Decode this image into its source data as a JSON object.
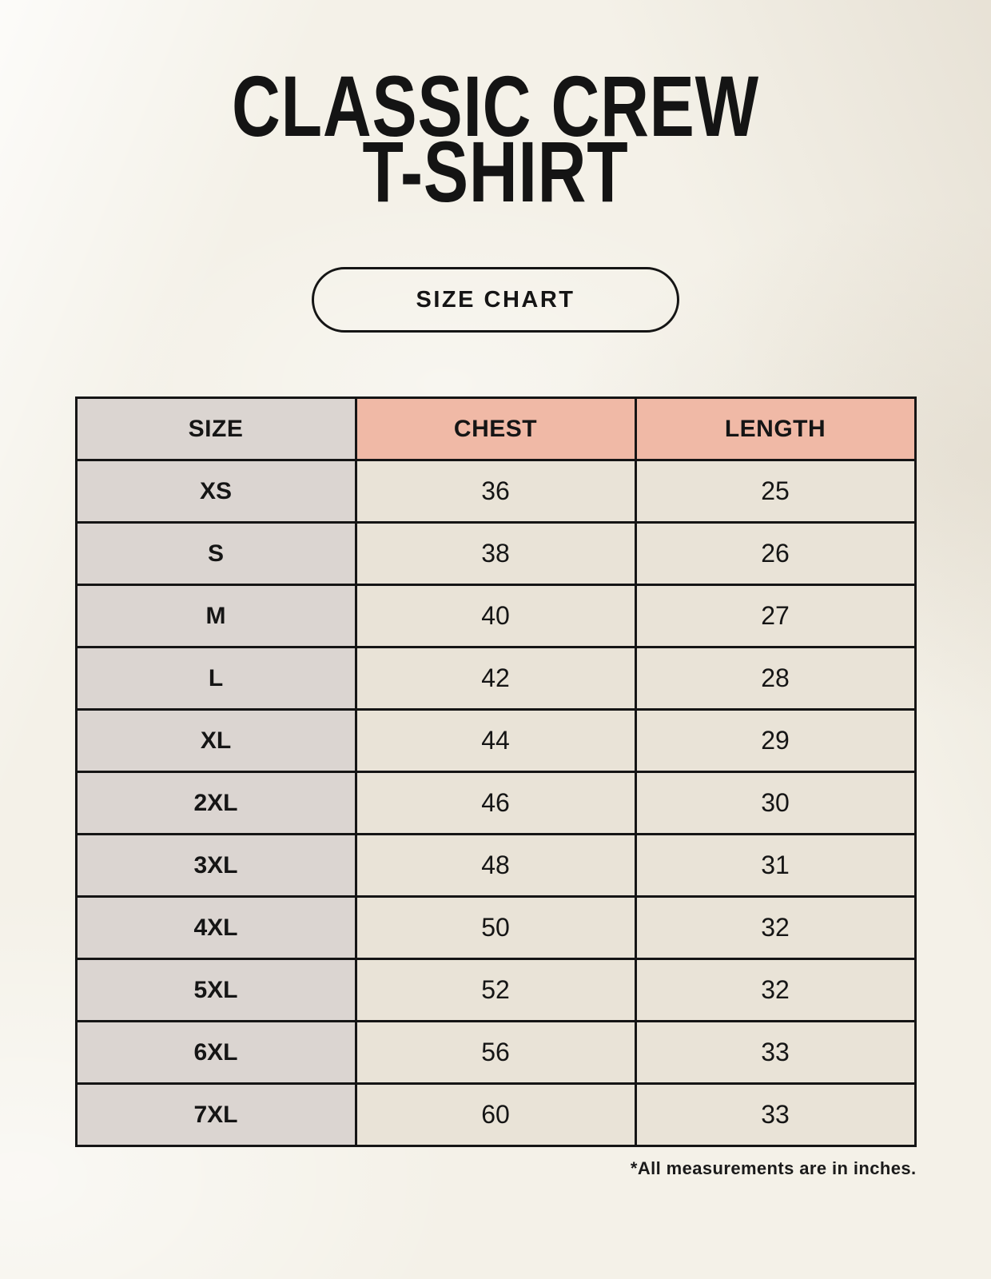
{
  "page": {
    "title_line1": "CLASSIC CREW",
    "title_line2": "T-SHIRT",
    "badge_label": "SIZE CHART",
    "footnote": "*All measurements are in inches."
  },
  "colors": {
    "page_bg": "#f4f1e8",
    "label_column_bg": "#dbd5d1",
    "header_accent_bg": "#f0b9a6",
    "value_cell_bg": "#e9e3d7",
    "border": "#151515",
    "text": "#151515"
  },
  "table": {
    "columns": [
      "SIZE",
      "CHEST",
      "LENGTH"
    ],
    "rows": [
      {
        "size": "XS",
        "chest": "36",
        "length": "25"
      },
      {
        "size": "S",
        "chest": "38",
        "length": "26"
      },
      {
        "size": "M",
        "chest": "40",
        "length": "27"
      },
      {
        "size": "L",
        "chest": "42",
        "length": "28"
      },
      {
        "size": "XL",
        "chest": "44",
        "length": "29"
      },
      {
        "size": "2XL",
        "chest": "46",
        "length": "30"
      },
      {
        "size": "3XL",
        "chest": "48",
        "length": "31"
      },
      {
        "size": "4XL",
        "chest": "50",
        "length": "32"
      },
      {
        "size": "5XL",
        "chest": "52",
        "length": "32"
      },
      {
        "size": "6XL",
        "chest": "56",
        "length": "33"
      },
      {
        "size": "7XL",
        "chest": "60",
        "length": "33"
      }
    ]
  }
}
